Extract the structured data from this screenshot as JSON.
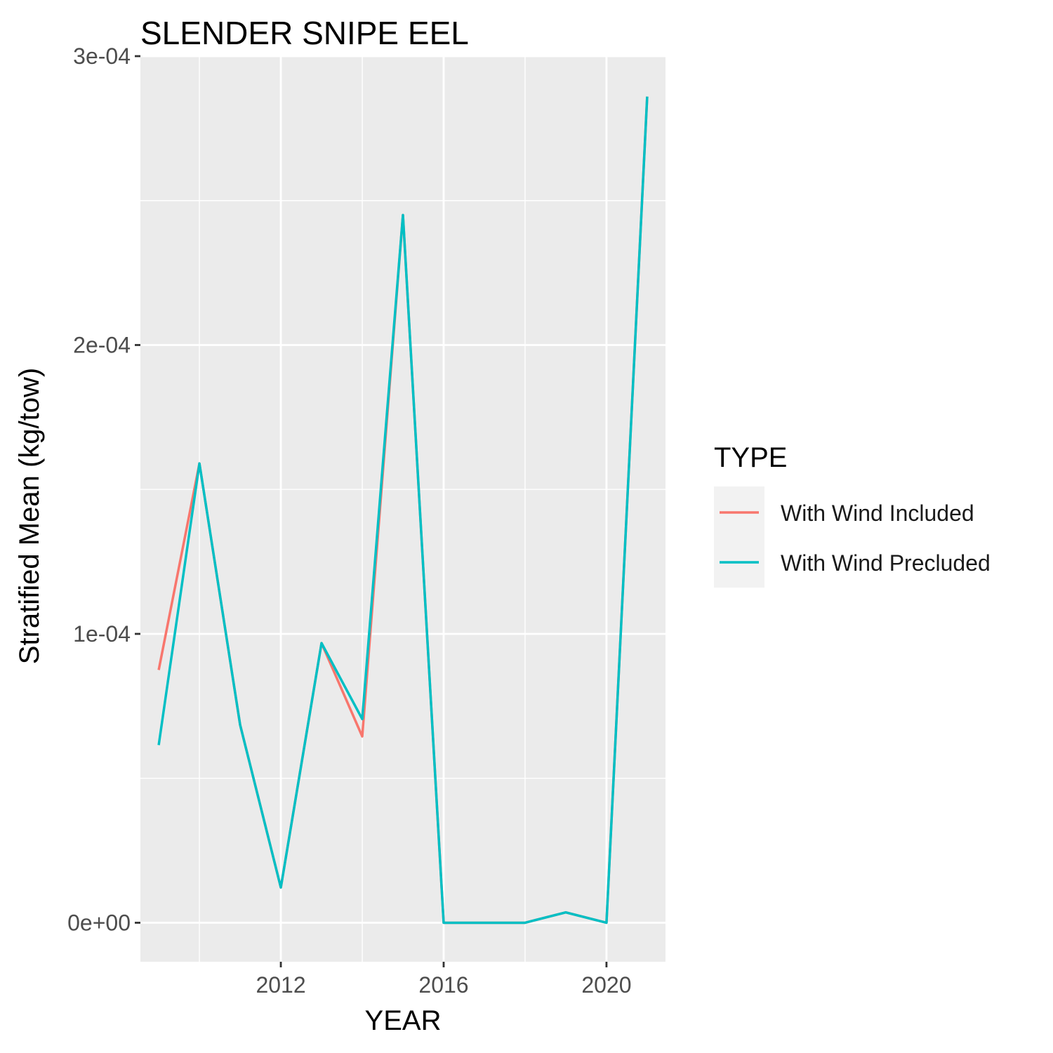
{
  "chart_data": {
    "type": "line",
    "title": "SLENDER SNIPE EEL",
    "xlabel": "YEAR",
    "ylabel": "Stratified Mean (kg/tow)",
    "xlim": [
      2008.55,
      2021.45
    ],
    "ylim": [
      -1.35e-05,
      0.0003
    ],
    "x_ticks": [
      2012,
      2016,
      2020
    ],
    "x_tick_labels": [
      "2012",
      "2016",
      "2020"
    ],
    "y_ticks": [
      0,
      0.0001,
      0.0002,
      0.0003
    ],
    "y_tick_labels": [
      "0e+00",
      "1e-04",
      "2e-04",
      "3e-04"
    ],
    "grid": true,
    "legend": {
      "title": "TYPE",
      "position": "right"
    },
    "x": [
      2009,
      2010,
      2011,
      2012,
      2013,
      2014,
      2015,
      2016,
      2017,
      2018,
      2019,
      2020,
      2021
    ],
    "series": [
      {
        "name": "With Wind Included",
        "color": "#F8766D",
        "values": [
          8.75e-05,
          0.000159,
          6.85e-05,
          1.22e-05,
          9.68e-05,
          6.45e-05,
          0.000245,
          0.0,
          0.0,
          0.0,
          3.6e-06,
          0.0,
          0.000286
        ]
      },
      {
        "name": "With Wind Precluded",
        "color": "#00BFC4",
        "values": [
          6.15e-05,
          0.000159,
          6.85e-05,
          1.22e-05,
          9.68e-05,
          7.05e-05,
          0.000245,
          0.0,
          0.0,
          0.0,
          3.6e-06,
          0.0,
          0.000286
        ]
      }
    ]
  }
}
